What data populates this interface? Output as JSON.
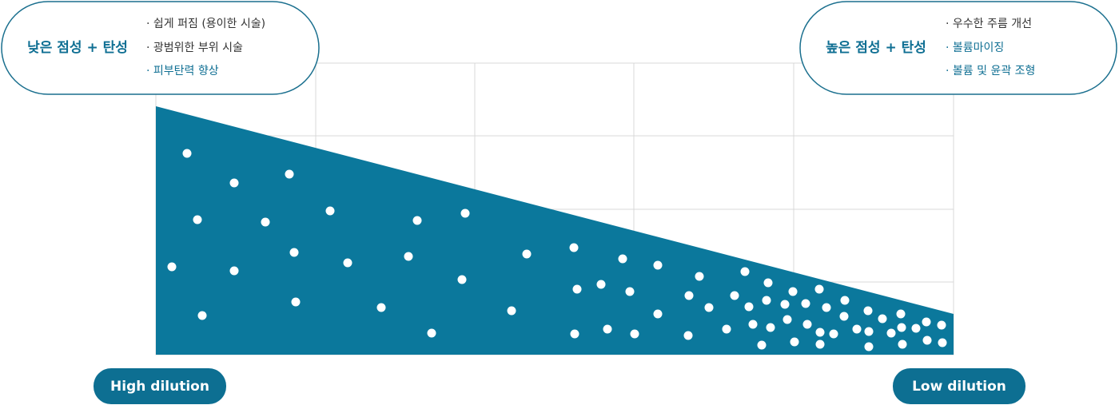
{
  "left_box": {
    "title": "낮은 점성 + 탄성",
    "items": [
      "· 쉽게 퍼짐 (용이한 시술)",
      "· 광범위한 부위 시술",
      "·  피부탄력 향상"
    ]
  },
  "right_box": {
    "title": "높은 점성 + 탄성",
    "items": [
      "· 우수한 주름 개선",
      "· 볼륨마이징",
      "· 볼륨 및 윤곽 조형"
    ]
  },
  "buttons": {
    "left": "High dilution",
    "right": "Low dilution"
  }
}
